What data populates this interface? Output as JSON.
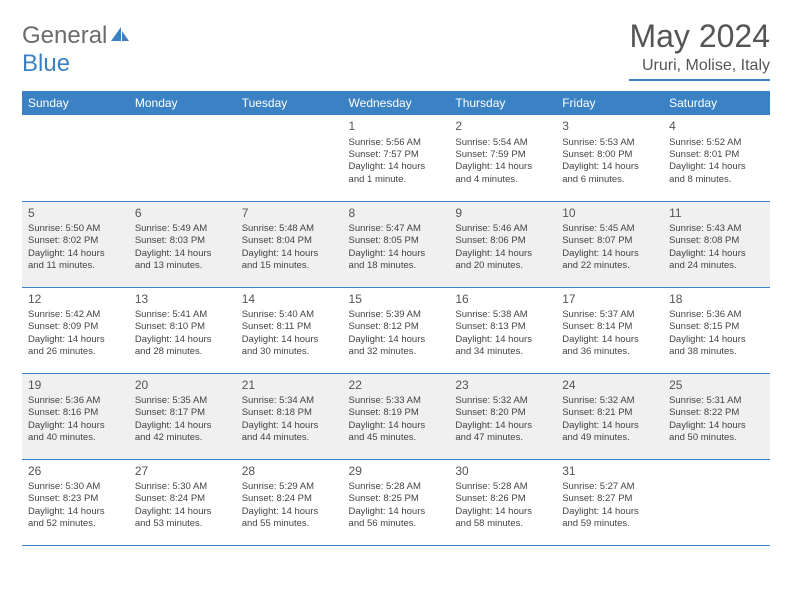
{
  "logo": {
    "part1": "General",
    "part2": "Blue"
  },
  "title": "May 2024",
  "location": "Ururi, Molise, Italy",
  "colors": {
    "accent": "#3b82c4",
    "shade": "#f0f0f0",
    "text": "#444"
  },
  "dayNames": [
    "Sunday",
    "Monday",
    "Tuesday",
    "Wednesday",
    "Thursday",
    "Friday",
    "Saturday"
  ],
  "weeks": [
    {
      "shade": false,
      "days": [
        null,
        null,
        null,
        {
          "n": "1",
          "sr": "5:56 AM",
          "ss": "7:57 PM",
          "dl": "14 hours and 1 minute."
        },
        {
          "n": "2",
          "sr": "5:54 AM",
          "ss": "7:59 PM",
          "dl": "14 hours and 4 minutes."
        },
        {
          "n": "3",
          "sr": "5:53 AM",
          "ss": "8:00 PM",
          "dl": "14 hours and 6 minutes."
        },
        {
          "n": "4",
          "sr": "5:52 AM",
          "ss": "8:01 PM",
          "dl": "14 hours and 8 minutes."
        }
      ]
    },
    {
      "shade": true,
      "days": [
        {
          "n": "5",
          "sr": "5:50 AM",
          "ss": "8:02 PM",
          "dl": "14 hours and 11 minutes."
        },
        {
          "n": "6",
          "sr": "5:49 AM",
          "ss": "8:03 PM",
          "dl": "14 hours and 13 minutes."
        },
        {
          "n": "7",
          "sr": "5:48 AM",
          "ss": "8:04 PM",
          "dl": "14 hours and 15 minutes."
        },
        {
          "n": "8",
          "sr": "5:47 AM",
          "ss": "8:05 PM",
          "dl": "14 hours and 18 minutes."
        },
        {
          "n": "9",
          "sr": "5:46 AM",
          "ss": "8:06 PM",
          "dl": "14 hours and 20 minutes."
        },
        {
          "n": "10",
          "sr": "5:45 AM",
          "ss": "8:07 PM",
          "dl": "14 hours and 22 minutes."
        },
        {
          "n": "11",
          "sr": "5:43 AM",
          "ss": "8:08 PM",
          "dl": "14 hours and 24 minutes."
        }
      ]
    },
    {
      "shade": false,
      "days": [
        {
          "n": "12",
          "sr": "5:42 AM",
          "ss": "8:09 PM",
          "dl": "14 hours and 26 minutes."
        },
        {
          "n": "13",
          "sr": "5:41 AM",
          "ss": "8:10 PM",
          "dl": "14 hours and 28 minutes."
        },
        {
          "n": "14",
          "sr": "5:40 AM",
          "ss": "8:11 PM",
          "dl": "14 hours and 30 minutes."
        },
        {
          "n": "15",
          "sr": "5:39 AM",
          "ss": "8:12 PM",
          "dl": "14 hours and 32 minutes."
        },
        {
          "n": "16",
          "sr": "5:38 AM",
          "ss": "8:13 PM",
          "dl": "14 hours and 34 minutes."
        },
        {
          "n": "17",
          "sr": "5:37 AM",
          "ss": "8:14 PM",
          "dl": "14 hours and 36 minutes."
        },
        {
          "n": "18",
          "sr": "5:36 AM",
          "ss": "8:15 PM",
          "dl": "14 hours and 38 minutes."
        }
      ]
    },
    {
      "shade": true,
      "days": [
        {
          "n": "19",
          "sr": "5:36 AM",
          "ss": "8:16 PM",
          "dl": "14 hours and 40 minutes."
        },
        {
          "n": "20",
          "sr": "5:35 AM",
          "ss": "8:17 PM",
          "dl": "14 hours and 42 minutes."
        },
        {
          "n": "21",
          "sr": "5:34 AM",
          "ss": "8:18 PM",
          "dl": "14 hours and 44 minutes."
        },
        {
          "n": "22",
          "sr": "5:33 AM",
          "ss": "8:19 PM",
          "dl": "14 hours and 45 minutes."
        },
        {
          "n": "23",
          "sr": "5:32 AM",
          "ss": "8:20 PM",
          "dl": "14 hours and 47 minutes."
        },
        {
          "n": "24",
          "sr": "5:32 AM",
          "ss": "8:21 PM",
          "dl": "14 hours and 49 minutes."
        },
        {
          "n": "25",
          "sr": "5:31 AM",
          "ss": "8:22 PM",
          "dl": "14 hours and 50 minutes."
        }
      ]
    },
    {
      "shade": false,
      "days": [
        {
          "n": "26",
          "sr": "5:30 AM",
          "ss": "8:23 PM",
          "dl": "14 hours and 52 minutes."
        },
        {
          "n": "27",
          "sr": "5:30 AM",
          "ss": "8:24 PM",
          "dl": "14 hours and 53 minutes."
        },
        {
          "n": "28",
          "sr": "5:29 AM",
          "ss": "8:24 PM",
          "dl": "14 hours and 55 minutes."
        },
        {
          "n": "29",
          "sr": "5:28 AM",
          "ss": "8:25 PM",
          "dl": "14 hours and 56 minutes."
        },
        {
          "n": "30",
          "sr": "5:28 AM",
          "ss": "8:26 PM",
          "dl": "14 hours and 58 minutes."
        },
        {
          "n": "31",
          "sr": "5:27 AM",
          "ss": "8:27 PM",
          "dl": "14 hours and 59 minutes."
        },
        null
      ]
    }
  ],
  "labels": {
    "sunrise": "Sunrise: ",
    "sunset": "Sunset: ",
    "daylight": "Daylight: "
  }
}
